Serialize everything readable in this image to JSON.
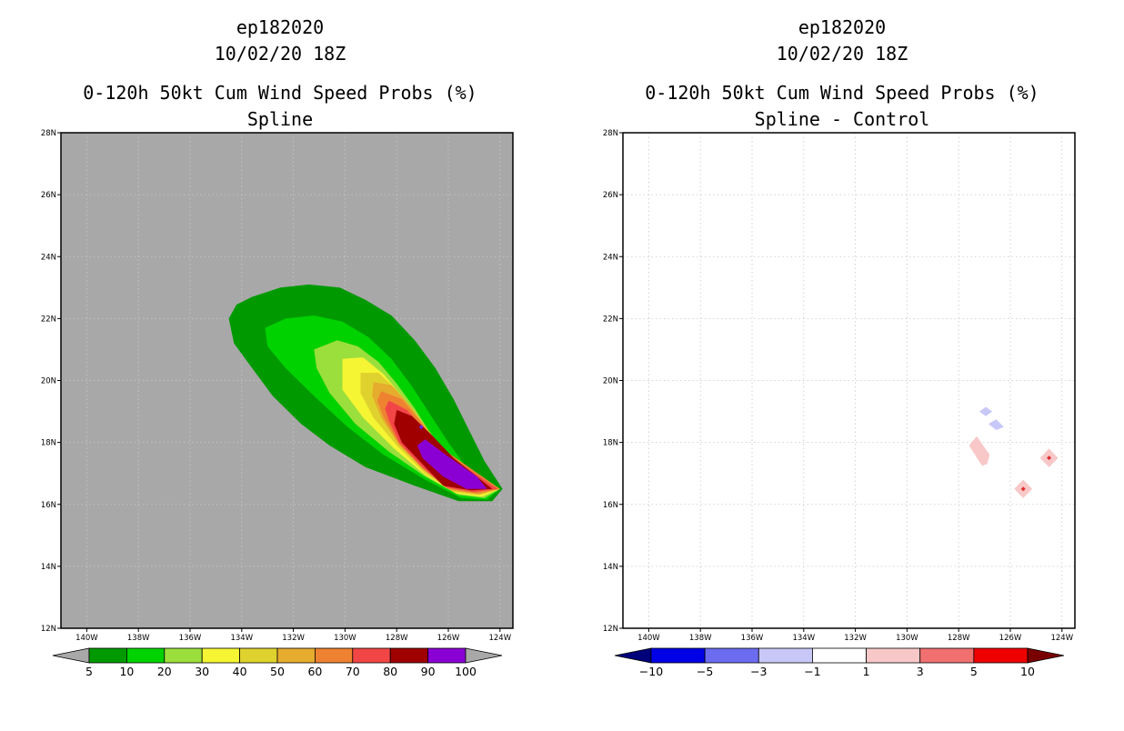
{
  "colors": {
    "land_gray": "#a8a8a8",
    "frame": "#000000",
    "grid": "#c8c8c8"
  },
  "panels": [
    {
      "id": "spline",
      "storm_id": "ep182020",
      "datetime": "10/02/20 18Z",
      "title": "0-120h 50kt Cum Wind Speed Probs (%)",
      "subtitle": "Spline",
      "background": "gray"
    },
    {
      "id": "diff",
      "storm_id": "ep182020",
      "datetime": "10/02/20 18Z",
      "title": "0-120h 50kt Cum Wind Speed Probs (%)",
      "subtitle": "Spline - Control",
      "background": "white"
    }
  ],
  "chart_data": [
    {
      "type": "contour-map",
      "title": "0-120h 50kt Cum Wind Speed Probs (%)",
      "subtitle": "Spline",
      "storm": "ep182020",
      "valid": "10/02/20 18Z",
      "lon_range": [
        -141,
        -123.5
      ],
      "lat_range": [
        12,
        28
      ],
      "x_ticks": [
        "140W",
        "138W",
        "136W",
        "134W",
        "132W",
        "130W",
        "128W",
        "126W",
        "124W"
      ],
      "y_ticks": [
        "12N",
        "14N",
        "16N",
        "18N",
        "20N",
        "22N",
        "24N",
        "26N",
        "28N"
      ],
      "grid": true,
      "colorbar": {
        "labels": [
          "5",
          "10",
          "20",
          "30",
          "40",
          "50",
          "60",
          "70",
          "80",
          "90",
          "100"
        ],
        "colors": [
          "#009a00",
          "#00d200",
          "#9bdf3c",
          "#f5f533",
          "#e0d22e",
          "#e6ac2e",
          "#ee8231",
          "#f24646",
          "#a00000",
          "#8a00d4"
        ],
        "left_arrow_color": "#a8a8a8",
        "right_arrow_color": "#a8a8a8"
      },
      "contours": [
        {
          "level": 5,
          "color": "#009a00",
          "polygon": [
            [
              -134.2,
              22.45
            ],
            [
              -133.6,
              22.7
            ],
            [
              -132.5,
              23.0
            ],
            [
              -131.4,
              23.1
            ],
            [
              -130.2,
              23.0
            ],
            [
              -129.2,
              22.6
            ],
            [
              -128.2,
              22.1
            ],
            [
              -127.3,
              21.3
            ],
            [
              -126.5,
              20.4
            ],
            [
              -125.8,
              19.4
            ],
            [
              -125.2,
              18.4
            ],
            [
              -124.6,
              17.4
            ],
            [
              -123.9,
              16.5
            ],
            [
              -124.3,
              16.1
            ],
            [
              -125.6,
              16.1
            ],
            [
              -127.3,
              16.6
            ],
            [
              -129.2,
              17.2
            ],
            [
              -130.6,
              17.9
            ],
            [
              -131.7,
              18.6
            ],
            [
              -132.8,
              19.5
            ],
            [
              -133.6,
              20.4
            ],
            [
              -134.3,
              21.2
            ],
            [
              -134.5,
              22.0
            ]
          ]
        },
        {
          "level": 10,
          "color": "#00d200",
          "polygon": [
            [
              -133.1,
              21.7
            ],
            [
              -132.3,
              22.0
            ],
            [
              -131.2,
              22.1
            ],
            [
              -130.1,
              21.9
            ],
            [
              -129.1,
              21.4
            ],
            [
              -128.2,
              20.7
            ],
            [
              -127.4,
              19.8
            ],
            [
              -126.7,
              18.9
            ],
            [
              -126.0,
              18.0
            ],
            [
              -125.3,
              17.2
            ],
            [
              -124.0,
              16.5
            ],
            [
              -124.5,
              16.15
            ],
            [
              -125.5,
              16.2
            ],
            [
              -126.9,
              16.8
            ],
            [
              -128.5,
              17.6
            ],
            [
              -129.9,
              18.5
            ],
            [
              -131.2,
              19.5
            ],
            [
              -132.3,
              20.4
            ],
            [
              -133.0,
              21.1
            ]
          ]
        },
        {
          "level": 20,
          "color": "#9bdf3c",
          "polygon": [
            [
              -131.2,
              21.0
            ],
            [
              -130.3,
              21.3
            ],
            [
              -129.5,
              21.1
            ],
            [
              -128.7,
              20.6
            ],
            [
              -128.0,
              19.9
            ],
            [
              -127.3,
              19.1
            ],
            [
              -126.7,
              18.3
            ],
            [
              -126.0,
              17.5
            ],
            [
              -125.3,
              16.9
            ],
            [
              -124.0,
              16.5
            ],
            [
              -124.6,
              16.2
            ],
            [
              -125.6,
              16.3
            ],
            [
              -126.9,
              16.9
            ],
            [
              -128.3,
              17.7
            ],
            [
              -129.6,
              18.6
            ],
            [
              -130.6,
              19.6
            ],
            [
              -131.1,
              20.4
            ]
          ]
        },
        {
          "level": 30,
          "color": "#f5f533",
          "polygon": [
            [
              -130.1,
              20.7
            ],
            [
              -129.3,
              20.75
            ],
            [
              -128.5,
              20.2
            ],
            [
              -127.8,
              19.5
            ],
            [
              -127.1,
              18.7
            ],
            [
              -126.4,
              17.9
            ],
            [
              -125.7,
              17.3
            ],
            [
              -124.0,
              16.5
            ],
            [
              -124.7,
              16.25
            ],
            [
              -125.7,
              16.35
            ],
            [
              -126.9,
              16.95
            ],
            [
              -128.1,
              17.8
            ],
            [
              -129.3,
              18.8
            ],
            [
              -130.1,
              19.7
            ]
          ]
        },
        {
          "level": 40,
          "color": "#e0d22e",
          "polygon": [
            [
              -129.4,
              20.25
            ],
            [
              -128.7,
              20.25
            ],
            [
              -128.0,
              19.7
            ],
            [
              -127.3,
              19.0
            ],
            [
              -126.6,
              18.2
            ],
            [
              -125.9,
              17.5
            ],
            [
              -124.0,
              16.5
            ],
            [
              -124.8,
              16.3
            ],
            [
              -125.8,
              16.4
            ],
            [
              -126.9,
              17.0
            ],
            [
              -128.0,
              17.9
            ],
            [
              -128.9,
              18.8
            ],
            [
              -129.4,
              19.6
            ]
          ]
        },
        {
          "level": 50,
          "color": "#e6ac2e",
          "polygon": [
            [
              -128.9,
              19.95
            ],
            [
              -128.2,
              19.85
            ],
            [
              -127.5,
              19.2
            ],
            [
              -126.8,
              18.4
            ],
            [
              -126.1,
              17.7
            ],
            [
              -124.0,
              16.5
            ],
            [
              -124.8,
              16.32
            ],
            [
              -125.9,
              16.45
            ],
            [
              -126.9,
              17.1
            ],
            [
              -127.9,
              17.9
            ],
            [
              -128.6,
              18.8
            ],
            [
              -128.95,
              19.5
            ]
          ]
        },
        {
          "level": 60,
          "color": "#ee8231",
          "polygon": [
            [
              -128.6,
              19.65
            ],
            [
              -127.8,
              19.4
            ],
            [
              -127.1,
              18.7
            ],
            [
              -126.4,
              17.9
            ],
            [
              -124.0,
              16.5
            ],
            [
              -124.9,
              16.35
            ],
            [
              -126.0,
              16.5
            ],
            [
              -127.0,
              17.15
            ],
            [
              -127.9,
              17.95
            ],
            [
              -128.5,
              18.8
            ],
            [
              -128.75,
              19.35
            ]
          ]
        },
        {
          "level": 70,
          "color": "#f24646",
          "polygon": [
            [
              -128.3,
              19.35
            ],
            [
              -127.6,
              19.05
            ],
            [
              -126.9,
              18.4
            ],
            [
              -126.2,
              17.7
            ],
            [
              -124.1,
              16.5
            ],
            [
              -125.0,
              16.4
            ],
            [
              -126.1,
              16.55
            ],
            [
              -127.0,
              17.2
            ],
            [
              -127.9,
              18.0
            ],
            [
              -128.3,
              18.7
            ],
            [
              -128.45,
              19.1
            ]
          ]
        },
        {
          "level": 80,
          "color": "#a00000",
          "polygon": [
            [
              -128.0,
              19.05
            ],
            [
              -127.4,
              18.85
            ],
            [
              -126.6,
              18.2
            ],
            [
              -125.8,
              17.5
            ],
            [
              -124.3,
              16.5
            ],
            [
              -125.1,
              16.45
            ],
            [
              -126.2,
              16.6
            ],
            [
              -127.0,
              17.3
            ],
            [
              -127.8,
              18.0
            ],
            [
              -128.1,
              18.6
            ]
          ]
        },
        {
          "level": 90,
          "color": "#8a00d4",
          "polygon": [
            [
              -126.9,
              18.1
            ],
            [
              -126.1,
              17.6
            ],
            [
              -124.9,
              16.9
            ],
            [
              -124.5,
              16.5
            ],
            [
              -125.3,
              16.5
            ],
            [
              -126.2,
              16.9
            ],
            [
              -127.0,
              17.5
            ],
            [
              -127.2,
              17.9
            ]
          ]
        }
      ],
      "markers": [
        {
          "lon": -127.05,
          "lat": 18.5,
          "color": "#6a1ee0"
        }
      ]
    },
    {
      "type": "contour-map",
      "title": "0-120h 50kt Cum Wind Speed Probs (%)",
      "subtitle": "Spline - Control",
      "storm": "ep182020",
      "valid": "10/02/20 18Z",
      "lon_range": [
        -141,
        -123.5
      ],
      "lat_range": [
        12,
        28
      ],
      "x_ticks": [
        "140W",
        "138W",
        "136W",
        "134W",
        "132W",
        "130W",
        "128W",
        "126W",
        "124W"
      ],
      "y_ticks": [
        "12N",
        "14N",
        "16N",
        "18N",
        "20N",
        "22N",
        "24N",
        "26N",
        "28N"
      ],
      "grid": true,
      "colorbar": {
        "labels": [
          "-10",
          "-5",
          "-3",
          "-1",
          "1",
          "3",
          "5",
          "10"
        ],
        "colors": [
          "#0000e6",
          "#6c6cf0",
          "#c8c8f8",
          "#ffffff",
          "#f8c8c8",
          "#f07070",
          "#ee0000"
        ],
        "left_arrow_color": "#00007a",
        "right_arrow_color": "#7a0000"
      },
      "contours": [
        {
          "level": -1,
          "color": "#c8c8f8",
          "polygon": [
            [
              -127.2,
              19.0
            ],
            [
              -126.95,
              19.15
            ],
            [
              -126.7,
              19.0
            ],
            [
              -126.95,
              18.85
            ]
          ]
        },
        {
          "level": -1,
          "color": "#c8c8f8",
          "polygon": [
            [
              -126.85,
              18.6
            ],
            [
              -126.55,
              18.75
            ],
            [
              -126.25,
              18.5
            ],
            [
              -126.55,
              18.4
            ]
          ]
        },
        {
          "level": 1,
          "color": "#f8c8c8",
          "polygon": [
            [
              -127.6,
              17.9
            ],
            [
              -127.3,
              18.2
            ],
            [
              -126.8,
              17.6
            ],
            [
              -126.9,
              17.3
            ],
            [
              -127.1,
              17.25
            ]
          ]
        },
        {
          "level": 1,
          "color": "#f8c8c8",
          "polygon": [
            [
              -125.5,
              16.2
            ],
            [
              -125.85,
              16.5
            ],
            [
              -125.5,
              16.8
            ],
            [
              -125.15,
              16.5
            ]
          ]
        },
        {
          "level": 1,
          "color": "#f8c8c8",
          "polygon": [
            [
              -124.5,
              17.2
            ],
            [
              -124.85,
              17.5
            ],
            [
              -124.5,
              17.8
            ],
            [
              -124.15,
              17.5
            ]
          ]
        }
      ],
      "markers": [
        {
          "lon": -125.5,
          "lat": 16.5,
          "color": "#e03030"
        },
        {
          "lon": -124.5,
          "lat": 17.5,
          "color": "#e03030"
        }
      ]
    }
  ]
}
